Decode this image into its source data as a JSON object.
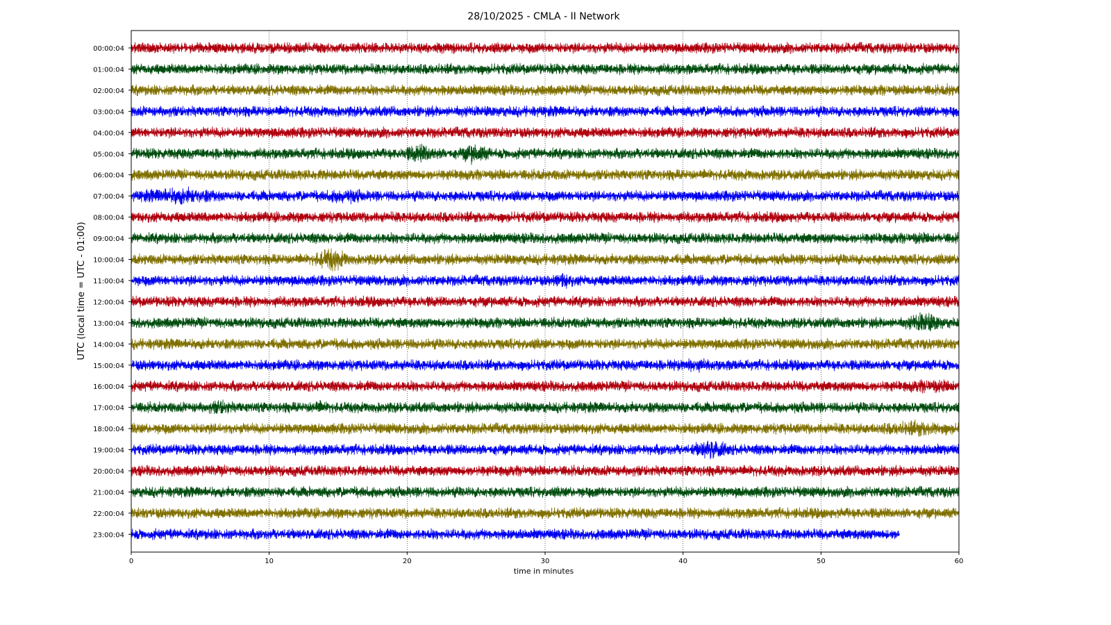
{
  "chart_data": {
    "type": "line",
    "title": "28/10/2025 - CMLA - II Network",
    "xlabel": "time in minutes",
    "ylabel": "UTC (local time = UTC - 01:00)",
    "xlim": [
      0,
      60
    ],
    "xticks": [
      "0",
      "10",
      "20",
      "30",
      "40",
      "50",
      "60"
    ],
    "grid": "vertical dotted at x ticks",
    "trace_colors": [
      "#b0000e",
      "#004d0f",
      "#807000",
      "#0000f0"
    ],
    "rows": [
      {
        "label": "00:00:04",
        "end_minute": 60,
        "events": []
      },
      {
        "label": "01:00:04",
        "end_minute": 60,
        "events": []
      },
      {
        "label": "02:00:04",
        "end_minute": 60,
        "events": [
          {
            "t": 59.3,
            "amp": 1.2,
            "dur": 0.3
          }
        ]
      },
      {
        "label": "03:00:04",
        "end_minute": 60,
        "events": []
      },
      {
        "label": "04:00:04",
        "end_minute": 60,
        "events": []
      },
      {
        "label": "05:00:04",
        "end_minute": 60,
        "events": [
          {
            "t": 21.0,
            "amp": 1.5,
            "dur": 1.5
          },
          {
            "t": 24.9,
            "amp": 1.6,
            "dur": 1.2
          }
        ]
      },
      {
        "label": "06:00:04",
        "end_minute": 60,
        "events": []
      },
      {
        "label": "07:00:04",
        "end_minute": 60,
        "events": [
          {
            "t": 3.5,
            "amp": 1.4,
            "dur": 3.0
          },
          {
            "t": 15.5,
            "amp": 1.3,
            "dur": 1.5
          }
        ]
      },
      {
        "label": "08:00:04",
        "end_minute": 60,
        "events": []
      },
      {
        "label": "09:00:04",
        "end_minute": 60,
        "events": [
          {
            "t": 57.0,
            "amp": 1.1,
            "dur": 1.0
          }
        ]
      },
      {
        "label": "10:00:04",
        "end_minute": 60,
        "events": [
          {
            "t": 14.5,
            "amp": 1.7,
            "dur": 1.5
          }
        ]
      },
      {
        "label": "11:00:04",
        "end_minute": 60,
        "events": [
          {
            "t": 31.3,
            "amp": 1.4,
            "dur": 0.8
          }
        ]
      },
      {
        "label": "12:00:04",
        "end_minute": 60,
        "events": []
      },
      {
        "label": "13:00:04",
        "end_minute": 60,
        "events": [
          {
            "t": 57.5,
            "amp": 1.6,
            "dur": 1.5
          }
        ]
      },
      {
        "label": "14:00:04",
        "end_minute": 60,
        "events": []
      },
      {
        "label": "15:00:04",
        "end_minute": 60,
        "events": [
          {
            "t": 40.7,
            "amp": 1.3,
            "dur": 1.2
          }
        ]
      },
      {
        "label": "16:00:04",
        "end_minute": 60,
        "events": [
          {
            "t": 58.0,
            "amp": 1.2,
            "dur": 2.0
          }
        ]
      },
      {
        "label": "17:00:04",
        "end_minute": 60,
        "events": [
          {
            "t": 6.5,
            "amp": 1.3,
            "dur": 1.0
          },
          {
            "t": 13.5,
            "amp": 1.2,
            "dur": 0.8
          }
        ]
      },
      {
        "label": "18:00:04",
        "end_minute": 60,
        "events": [
          {
            "t": 57.0,
            "amp": 1.3,
            "dur": 3.0
          }
        ]
      },
      {
        "label": "19:00:04",
        "end_minute": 60,
        "events": [
          {
            "t": 42.0,
            "amp": 1.6,
            "dur": 1.5
          }
        ]
      },
      {
        "label": "20:00:04",
        "end_minute": 60,
        "events": []
      },
      {
        "label": "21:00:04",
        "end_minute": 60,
        "events": []
      },
      {
        "label": "22:00:04",
        "end_minute": 60,
        "events": []
      },
      {
        "label": "23:00:04",
        "end_minute": 55.7,
        "events": []
      }
    ]
  }
}
